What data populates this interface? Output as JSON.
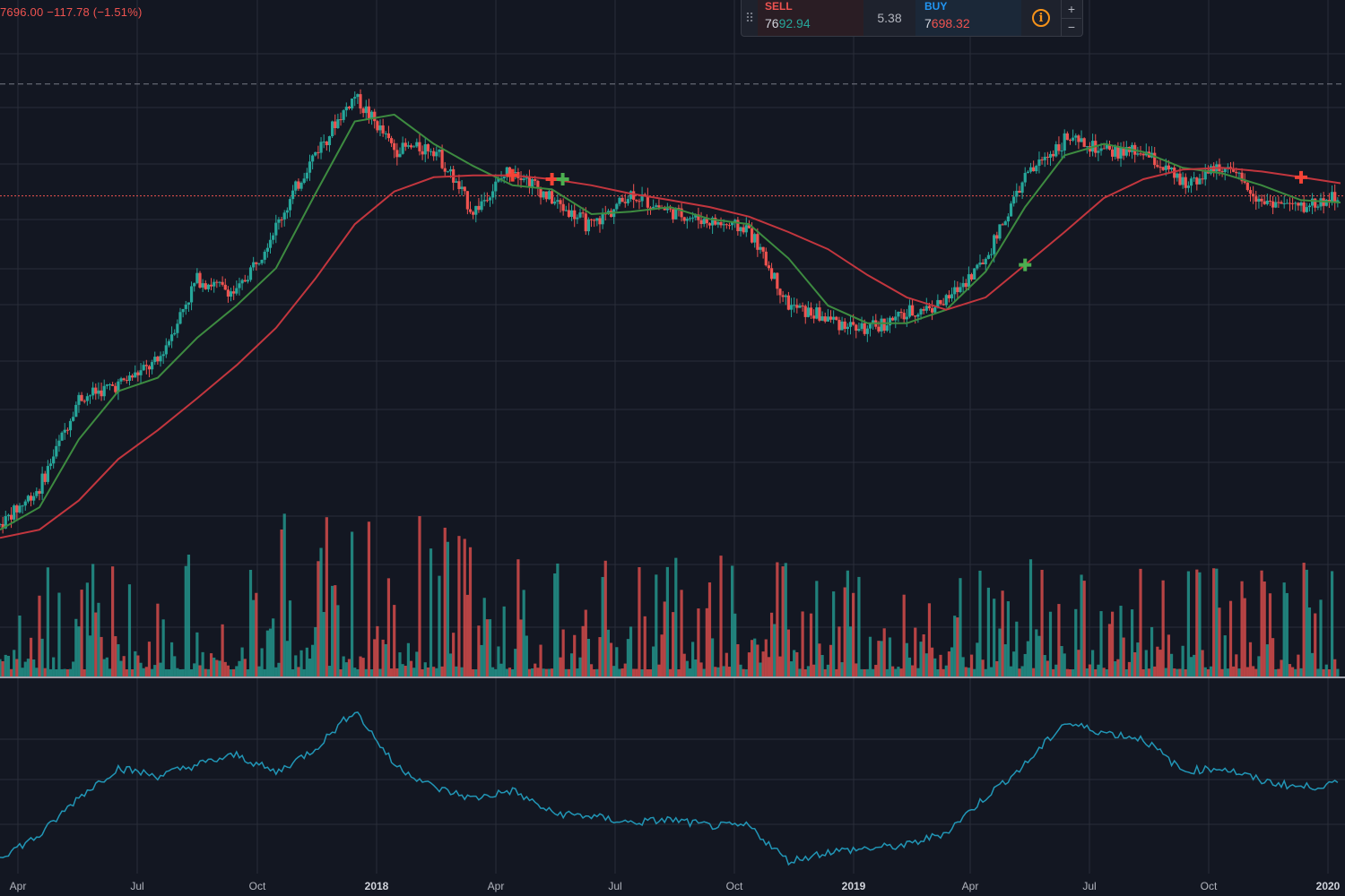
{
  "header": {
    "ohlc_text": "7696.00 −117.78 (−1.51%)"
  },
  "trade_widget": {
    "drag_icon": "grip-dots-icon",
    "sell_label": "SELL",
    "sell_price_prefix": "76",
    "sell_price_suffix": "92.94",
    "spread": "5.38",
    "buy_label": "BUY",
    "buy_price_prefix": "7",
    "buy_price_suffix": "698.32",
    "info_icon": "info-icon",
    "info_symbol": "i",
    "qty_plus": "+",
    "qty_minus": "−"
  },
  "x_axis": {
    "labels": [
      {
        "text": "Apr",
        "bold": false
      },
      {
        "text": "Jul",
        "bold": false
      },
      {
        "text": "Oct",
        "bold": false
      },
      {
        "text": "2018",
        "bold": true
      },
      {
        "text": "Apr",
        "bold": false
      },
      {
        "text": "Jul",
        "bold": false
      },
      {
        "text": "Oct",
        "bold": false
      },
      {
        "text": "2019",
        "bold": true
      },
      {
        "text": "Apr",
        "bold": false
      },
      {
        "text": "Jul",
        "bold": false
      },
      {
        "text": "Oct",
        "bold": false
      },
      {
        "text": "2020",
        "bold": true
      }
    ]
  },
  "colors": {
    "background": "#131722",
    "grid": "#2a2e39",
    "up": "#26a69a",
    "down": "#ef5350",
    "ma_fast": "#3d8b40",
    "ma_slow": "#c2363e",
    "indicator": "#2196b6",
    "cross_up": "#4caf50",
    "cross_down": "#f44336"
  },
  "chart_data": {
    "type": "candlestick",
    "x": [
      "2017-03",
      "2017-04",
      "2017-05",
      "2017-06",
      "2017-07",
      "2017-08",
      "2017-09",
      "2017-10",
      "2017-11",
      "2017-12",
      "2018-01",
      "2018-02",
      "2018-03",
      "2018-04",
      "2018-05",
      "2018-06",
      "2018-07",
      "2018-08",
      "2018-09",
      "2018-10",
      "2018-11",
      "2018-12",
      "2019-01",
      "2019-02",
      "2019-03",
      "2019-04",
      "2019-05",
      "2019-06",
      "2019-07",
      "2019-08",
      "2019-09",
      "2019-10",
      "2019-11",
      "2019-12",
      "2020-01"
    ],
    "close": [
      1080,
      1350,
      2300,
      2500,
      2850,
      4700,
      4300,
      6400,
      10000,
      14000,
      10200,
      10300,
      7000,
      9200,
      7500,
      6400,
      7800,
      7000,
      6600,
      6300,
      4000,
      3700,
      3450,
      3800,
      4100,
      5300,
      8600,
      10800,
      10000,
      10000,
      8300,
      9200,
      7500,
      7200,
      7700
    ],
    "series": [
      {
        "name": "MA fast",
        "values": [
          1050,
          1200,
          1800,
          2400,
          2600,
          3300,
          4000,
          5000,
          7800,
          12000,
          12500,
          10500,
          9200,
          8200,
          8000,
          6900,
          7000,
          7200,
          6700,
          6500,
          5300,
          4000,
          3600,
          3600,
          3900,
          4900,
          7200,
          9800,
          10500,
          10000,
          9100,
          8800,
          8200,
          7500,
          7400
        ]
      },
      {
        "name": "MA slow",
        "values": [
          1000,
          1050,
          1250,
          1600,
          1900,
          2300,
          2800,
          3500,
          4700,
          6500,
          7900,
          8600,
          8700,
          8700,
          8500,
          8200,
          7800,
          7500,
          7200,
          6800,
          6200,
          5600,
          4800,
          4200,
          3900,
          4200,
          5100,
          6200,
          7600,
          8500,
          9000,
          9100,
          8900,
          8600,
          8300
        ]
      }
    ],
    "volume_peaks_note": "",
    "indicator_values": [
      0.05,
      0.18,
      0.42,
      0.6,
      0.55,
      0.62,
      0.68,
      0.57,
      0.72,
      0.96,
      0.62,
      0.48,
      0.41,
      0.46,
      0.32,
      0.3,
      0.26,
      0.28,
      0.24,
      0.24,
      0.02,
      0.08,
      0.1,
      0.12,
      0.2,
      0.42,
      0.62,
      0.88,
      0.82,
      0.78,
      0.58,
      0.6,
      0.52,
      0.48,
      0.5
    ],
    "signals": [
      {
        "type": "sell",
        "date": "2018-04"
      },
      {
        "type": "sell",
        "date": "2018-05"
      },
      {
        "type": "buy",
        "date": "2018-05"
      },
      {
        "type": "buy",
        "date": "2019-05"
      },
      {
        "type": "sell",
        "date": "2019-12"
      }
    ],
    "last_price": 7696.0,
    "horizontal_line_price": 15000,
    "y_scale": "log",
    "grid": true
  }
}
